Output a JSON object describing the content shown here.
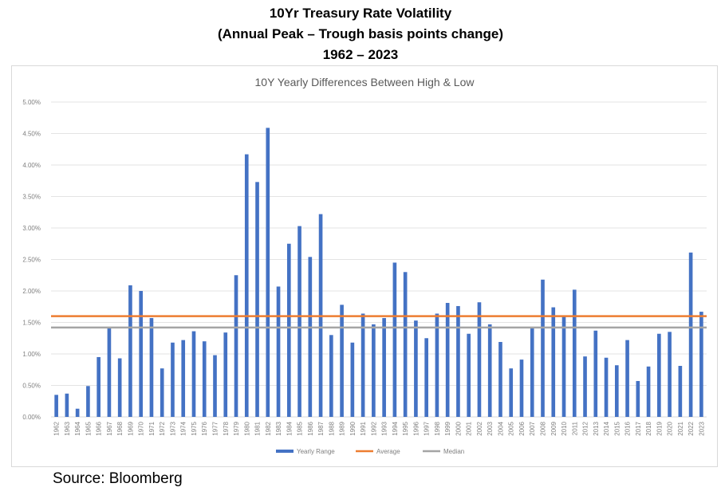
{
  "heading": {
    "line1": "10Yr Treasury Rate Volatility",
    "line2": "(Annual Peak – Trough basis points change)",
    "line3": "1962 – 2023"
  },
  "source": "Source: Bloomberg",
  "colors": {
    "bar": "#4472c4",
    "average": "#ed7d31",
    "median": "#a5a5a5",
    "grid": "#e3e3e3",
    "axis_text": "#7f7f7f"
  },
  "chart_data": {
    "type": "bar",
    "title": "10Y Yearly Differences Between High & Low",
    "xlabel": "",
    "ylabel": "",
    "ylim": [
      0,
      5
    ],
    "yticks": [
      "0.00%",
      "0.50%",
      "1.00%",
      "1.50%",
      "2.00%",
      "2.50%",
      "3.00%",
      "3.50%",
      "4.00%",
      "4.50%",
      "5.00%"
    ],
    "grid": true,
    "legend_position": "bottom",
    "categories": [
      "1962",
      "1963",
      "1964",
      "1965",
      "1966",
      "1967",
      "1968",
      "1969",
      "1970",
      "1971",
      "1972",
      "1973",
      "1974",
      "1975",
      "1976",
      "1977",
      "1978",
      "1979",
      "1980",
      "1981",
      "1982",
      "1983",
      "1984",
      "1985",
      "1986",
      "1987",
      "1988",
      "1989",
      "1990",
      "1991",
      "1992",
      "1993",
      "1994",
      "1995",
      "1996",
      "1997",
      "1998",
      "1999",
      "2000",
      "2001",
      "2002",
      "2003",
      "2004",
      "2005",
      "2006",
      "2007",
      "2008",
      "2009",
      "2010",
      "2011",
      "2012",
      "2013",
      "2014",
      "2015",
      "2016",
      "2017",
      "2018",
      "2019",
      "2020",
      "2021",
      "2022",
      "2023"
    ],
    "series": [
      {
        "name": "Yearly Range",
        "kind": "bar",
        "values": [
          0.35,
          0.37,
          0.13,
          0.49,
          0.95,
          1.41,
          0.93,
          2.09,
          2.0,
          1.57,
          0.77,
          1.18,
          1.22,
          1.36,
          1.2,
          0.98,
          1.34,
          2.25,
          4.17,
          3.73,
          4.59,
          2.07,
          2.75,
          3.03,
          2.54,
          3.22,
          1.3,
          1.78,
          1.18,
          1.64,
          1.47,
          1.57,
          2.45,
          2.3,
          1.53,
          1.25,
          1.64,
          1.81,
          1.76,
          1.32,
          1.82,
          1.47,
          1.19,
          0.77,
          0.91,
          1.41,
          2.18,
          1.74,
          1.59,
          2.02,
          0.96,
          1.37,
          0.94,
          0.82,
          1.22,
          0.57,
          0.8,
          1.32,
          1.35,
          0.81,
          2.61,
          1.67
        ]
      },
      {
        "name": "Average",
        "kind": "line",
        "value": 1.6
      },
      {
        "name": "Median",
        "kind": "line",
        "value": 1.42
      }
    ]
  }
}
